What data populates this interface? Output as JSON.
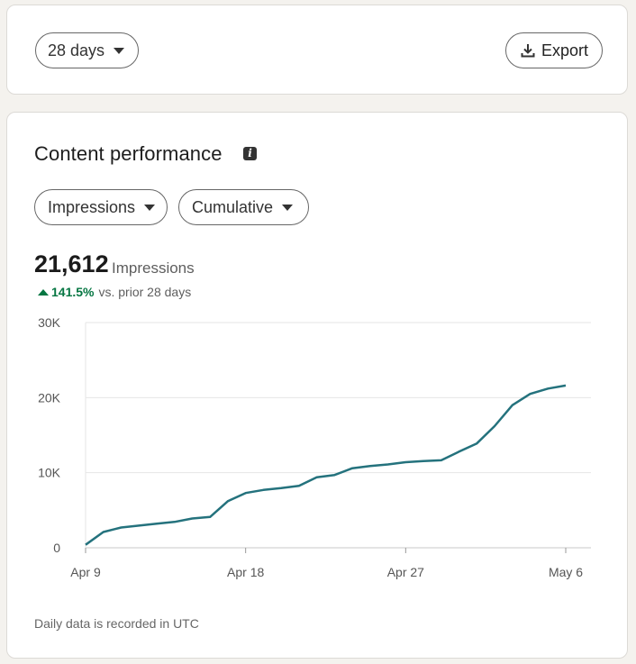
{
  "toolbar": {
    "range_label": "28 days",
    "export_label": "Export"
  },
  "content": {
    "title": "Content performance",
    "metric_label": "Impressions",
    "mode_label": "Cumulative",
    "total": "21,612",
    "total_unit": "Impressions",
    "change_pct": "141.5%",
    "change_caption": "vs. prior 28 days",
    "footnote": "Daily data is recorded in UTC"
  },
  "colors": {
    "line": "#24727d",
    "positive": "#057642",
    "grid": "#e6e6e6"
  },
  "icons": {
    "range_caret": "caret-down-icon",
    "export": "download-icon",
    "info": "info-icon",
    "change": "triangle-up-icon"
  },
  "chart_data": {
    "type": "line",
    "title": "",
    "xlabel": "",
    "ylabel": "",
    "ylim": [
      0,
      30000
    ],
    "yticks": [
      0,
      10000,
      20000,
      30000
    ],
    "ytick_labels": [
      "0",
      "10K",
      "20K",
      "30K"
    ],
    "xtick_labels": [
      "Apr 9",
      "Apr 18",
      "Apr 27",
      "May 6"
    ],
    "x": [
      "Apr 9",
      "Apr 10",
      "Apr 11",
      "Apr 12",
      "Apr 13",
      "Apr 14",
      "Apr 15",
      "Apr 16",
      "Apr 17",
      "Apr 18",
      "Apr 19",
      "Apr 20",
      "Apr 21",
      "Apr 22",
      "Apr 23",
      "Apr 24",
      "Apr 25",
      "Apr 26",
      "Apr 27",
      "Apr 28",
      "Apr 29",
      "Apr 30",
      "May 1",
      "May 2",
      "May 3",
      "May 4",
      "May 5",
      "May 6"
    ],
    "series": [
      {
        "values": [
          400,
          2100,
          2700,
          2950,
          3200,
          3450,
          3900,
          4100,
          6200,
          7300,
          7700,
          7950,
          8250,
          9400,
          9700,
          10600,
          10900,
          11100,
          11400,
          11550,
          11650,
          12800,
          13900,
          16200,
          19000,
          20500,
          21200,
          21612
        ]
      }
    ]
  }
}
